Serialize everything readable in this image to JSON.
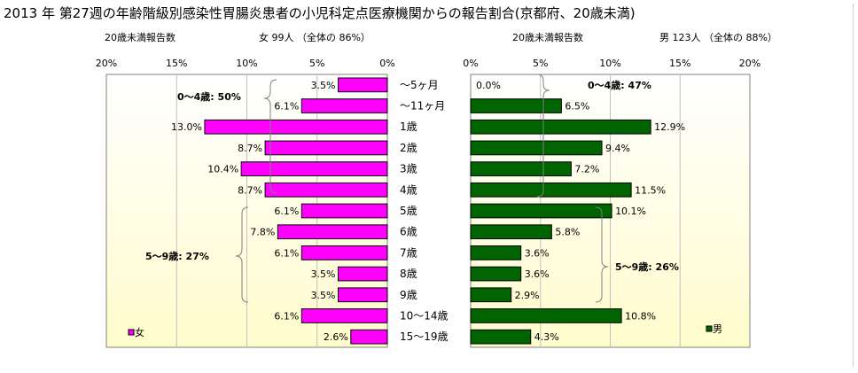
{
  "title": "2013 年 第27週の年齢階級別感染性胃腸炎患者の小児科定点医療機関からの報告割合(京都府、20歳未満)",
  "colors": {
    "female_fill": "#ff00ff",
    "male_fill": "#006400",
    "plot_bg_top": "#ffffff",
    "plot_bg_bottom": "#fffccc",
    "grid": "#c0c0c0",
    "bracket": "#808080"
  },
  "categories": [
    "～5ヶ月",
    "～11ヶ月",
    "1歳",
    "2歳",
    "3歳",
    "4歳",
    "5歳",
    "6歳",
    "7歳",
    "8歳",
    "9歳",
    "10～14歳",
    "15～19歳"
  ],
  "chart_data": [
    {
      "type": "bar",
      "orientation": "horizontal-reversed",
      "subtitle_left": "20歳未満報告数",
      "subtitle_right": "女  99人 （全体の  86%）",
      "axis_tick_labels": [
        "20%",
        "15%",
        "10%",
        "5%",
        "0%"
      ],
      "xlim": [
        0,
        20
      ],
      "series": [
        {
          "name": "女",
          "values": [
            3.5,
            6.1,
            13.0,
            8.7,
            10.4,
            8.7,
            6.1,
            7.8,
            6.1,
            3.5,
            3.5,
            6.1,
            2.6
          ],
          "value_labels": [
            "3.5%",
            "6.1%",
            "13.0%",
            "8.7%",
            "10.4%",
            "8.7%",
            "6.1%",
            "7.8%",
            "6.1%",
            "3.5%",
            "3.5%",
            "6.1%",
            "2.6%"
          ]
        }
      ],
      "annotations": [
        "0～4歳: 50%",
        "5～9歳: 27%"
      ],
      "legend": "bottom-left"
    },
    {
      "type": "bar",
      "orientation": "horizontal",
      "subtitle_left": "20歳未満報告数",
      "subtitle_right": "男  123人 （全体の  88%）",
      "axis_tick_labels": [
        "0%",
        "5%",
        "10%",
        "15%",
        "20%"
      ],
      "xlim": [
        0,
        20
      ],
      "series": [
        {
          "name": "男",
          "values": [
            0.0,
            6.5,
            12.9,
            9.4,
            7.2,
            11.5,
            10.1,
            5.8,
            3.6,
            3.6,
            2.9,
            10.8,
            4.3
          ],
          "value_labels": [
            "0.0%",
            "6.5%",
            "12.9%",
            "9.4%",
            "7.2%",
            "11.5%",
            "10.1%",
            "5.8%",
            "3.6%",
            "3.6%",
            "2.9%",
            "10.8%",
            "4.3%"
          ]
        }
      ],
      "annotations": [
        "0～4歳: 47%",
        "5～9歳: 26%"
      ],
      "legend": "bottom-right"
    }
  ]
}
